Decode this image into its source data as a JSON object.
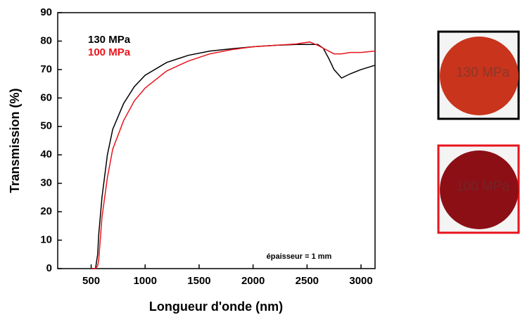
{
  "chart_data": {
    "type": "line",
    "xlabel": "Longueur d'onde (nm)",
    "ylabel": "Transmission (%)",
    "annotation": "épaisseur = 1 mm",
    "xlim": [
      190,
      3130
    ],
    "ylim": [
      0,
      90
    ],
    "xticks": [
      500,
      1000,
      1500,
      2000,
      2500,
      3000
    ],
    "yticks": [
      0,
      10,
      20,
      30,
      40,
      50,
      60,
      70,
      80,
      90
    ],
    "x": [
      500,
      540,
      560,
      570,
      600,
      650,
      700,
      800,
      900,
      1000,
      1200,
      1400,
      1600,
      1800,
      2000,
      2200,
      2400,
      2525,
      2600,
      2650,
      2700,
      2750,
      2820,
      2900,
      3000,
      3130
    ],
    "series": [
      {
        "name": "130 MPa",
        "color": "#000000",
        "values": [
          0,
          0,
          5,
          12,
          25,
          40,
          49,
          58,
          64,
          68,
          72.5,
          75,
          76.5,
          77.3,
          78,
          78.5,
          78.8,
          78.8,
          78.8,
          77.5,
          74,
          70,
          67,
          68.5,
          70,
          71.5
        ]
      },
      {
        "name": "100 MPa",
        "color": "#e8141c",
        "values": [
          0,
          0,
          1,
          3,
          18,
          32,
          42,
          52,
          59,
          63.5,
          69.5,
          73,
          75.5,
          77,
          78,
          78.5,
          79,
          79.7,
          78.5,
          77.5,
          76.5,
          75.5,
          75.5,
          76,
          76,
          76.5
        ]
      }
    ]
  },
  "photos": [
    {
      "label": "130 MPa",
      "border": "#000000",
      "disc": "#c8341c"
    },
    {
      "label": "100 MPa",
      "border": "#e8141c",
      "disc": "#8c0f16"
    }
  ]
}
